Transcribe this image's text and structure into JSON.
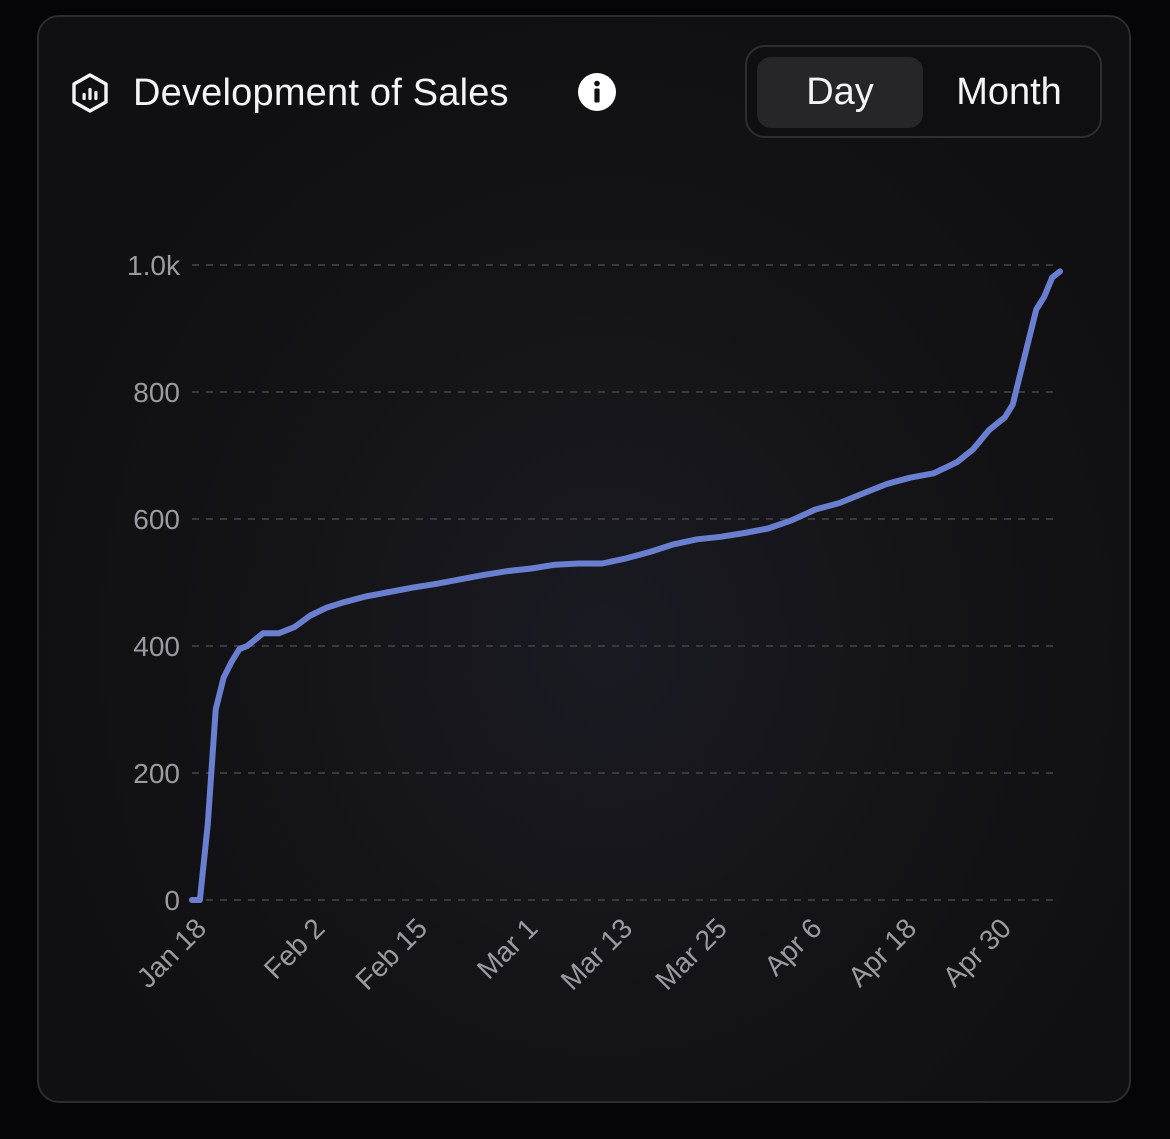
{
  "header": {
    "title": "Development of Sales",
    "icon": "chart-hexagon-icon",
    "info_icon": "info-icon"
  },
  "toggle": {
    "options": [
      "Day",
      "Month"
    ],
    "selected": "Day"
  },
  "colors": {
    "line": "#6b7fd1",
    "grid": "#3a3a3e",
    "text": "#f4f4f6",
    "tick": "#9a9aa0"
  },
  "chart_data": {
    "type": "line",
    "title": "Development of Sales",
    "xlabel": "",
    "ylabel": "",
    "grid": "horizontal-dashed",
    "legend": "none",
    "ylim": [
      0,
      1000
    ],
    "y_ticks": [
      0,
      200,
      400,
      600,
      800,
      1000
    ],
    "y_tick_labels": [
      "0",
      "200",
      "400",
      "600",
      "800",
      "1.0k"
    ],
    "x_tick_labels": [
      "Jan 18",
      "Feb 2",
      "Feb 15",
      "Mar 1",
      "Mar 13",
      "Mar 25",
      "Apr 6",
      "Apr 18",
      "Apr 30"
    ],
    "x_ticks": [
      "Jan 18",
      "Feb 2",
      "Feb 15",
      "Mar 1",
      "Mar 13",
      "Mar 25",
      "Apr 6",
      "Apr 18",
      "Apr 30"
    ],
    "xlim": [
      "Jan 17",
      "May 7"
    ],
    "series": [
      {
        "x": [
          "Jan 17",
          "Jan 18",
          "Jan 19",
          "Jan 20",
          "Jan 21",
          "Jan 22",
          "Jan 23",
          "Jan 24",
          "Jan 25",
          "Jan 26",
          "Jan 28",
          "Jan 30",
          "Feb 1",
          "Feb 3",
          "Feb 5",
          "Feb 8",
          "Feb 11",
          "Feb 14",
          "Feb 17",
          "Feb 20",
          "Feb 23",
          "Feb 26",
          "Mar 1",
          "Mar 4",
          "Mar 7",
          "Mar 10",
          "Mar 13",
          "Mar 16",
          "Mar 19",
          "Mar 22",
          "Mar 25",
          "Mar 28",
          "Mar 31",
          "Apr 3",
          "Apr 6",
          "Apr 9",
          "Apr 12",
          "Apr 15",
          "Apr 18",
          "Apr 21",
          "Apr 24",
          "Apr 26",
          "Apr 28",
          "Apr 30",
          "May 1",
          "May 2",
          "May 3",
          "May 4",
          "May 5",
          "May 6",
          "May 7"
        ],
        "values": [
          0,
          0,
          120,
          300,
          350,
          375,
          395,
          400,
          410,
          420,
          420,
          430,
          448,
          460,
          468,
          478,
          485,
          492,
          498,
          505,
          512,
          518,
          522,
          528,
          530,
          530,
          538,
          548,
          560,
          568,
          572,
          578,
          585,
          598,
          615,
          625,
          640,
          655,
          665,
          672,
          690,
          710,
          740,
          760,
          780,
          830,
          880,
          930,
          950,
          980,
          990
        ]
      }
    ]
  }
}
